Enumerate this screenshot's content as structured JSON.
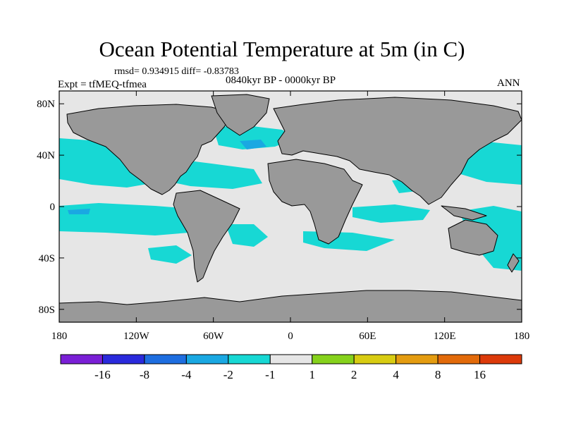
{
  "chart_data": {
    "type": "map",
    "title": "Ocean Potential Temperature at 5m (in C)",
    "stats_label": "rmsd= 0.934915 diff= -0.83783",
    "period_label": "0840kyr BP - 0000kyr BP",
    "experiment_label": "Expt = tfMEQ-tfmea",
    "season_label": "ANN",
    "x_axis": {
      "range": [
        -180,
        180
      ],
      "ticks": [
        {
          "value": -180,
          "label": "180"
        },
        {
          "value": -120,
          "label": "120W"
        },
        {
          "value": -60,
          "label": "60W"
        },
        {
          "value": 0,
          "label": "0"
        },
        {
          "value": 60,
          "label": "60E"
        },
        {
          "value": 120,
          "label": "120E"
        },
        {
          "value": 180,
          "label": "180"
        }
      ]
    },
    "y_axis": {
      "range": [
        -90,
        90
      ],
      "ticks": [
        {
          "value": 80,
          "label": "80N"
        },
        {
          "value": 40,
          "label": "40N"
        },
        {
          "value": 0,
          "label": "0"
        },
        {
          "value": -40,
          "label": "40S"
        },
        {
          "value": -80,
          "label": "80S"
        }
      ]
    },
    "colorbar": {
      "boxes": [
        "#7a1fd6",
        "#2a2adc",
        "#1e6ee0",
        "#1aa8e2",
        "#17d8d4",
        "#e6e6e6",
        "#86d21c",
        "#d8cc12",
        "#e49c10",
        "#e26a0a",
        "#dc3a0a"
      ],
      "labels": [
        "-16",
        "-8",
        "-4",
        "-2",
        "-1",
        "1",
        "2",
        "4",
        "8",
        "16"
      ]
    },
    "colors": {
      "land": "#999999",
      "ocean_neutral": "#e6e6e6",
      "cool_anomaly": "#17d8d4",
      "strong_cool_anomaly": "#1aa8e2"
    }
  }
}
